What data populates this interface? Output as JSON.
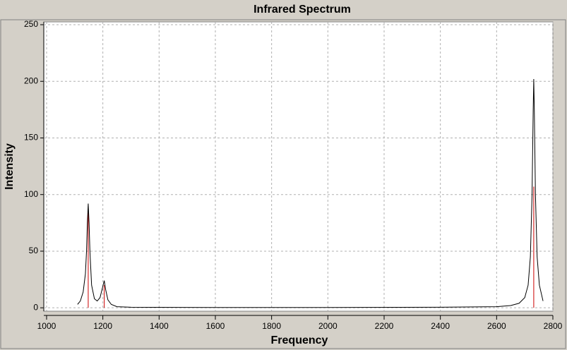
{
  "chart_data": {
    "type": "line",
    "title": "Infrared Spectrum",
    "xlabel": "Frequency",
    "ylabel": "Intensity",
    "x": [
      1110,
      1120,
      1130,
      1138,
      1142,
      1145,
      1148,
      1151,
      1154,
      1160,
      1170,
      1180,
      1190,
      1198,
      1205,
      1210,
      1218,
      1230,
      1250,
      1300,
      1600,
      2000,
      2400,
      2600,
      2650,
      2680,
      2700,
      2712,
      2720,
      2726,
      2730,
      2732,
      2734,
      2738,
      2744,
      2752,
      2765
    ],
    "series": [
      {
        "color": "#000000",
        "values": [
          3,
          6,
          14,
          30,
          50,
          75,
          92,
          75,
          50,
          20,
          8,
          6,
          9,
          17,
          24,
          16,
          7,
          3,
          1,
          0.5,
          0.3,
          0.3,
          0.5,
          1,
          2,
          4,
          9,
          20,
          45,
          100,
          175,
          202,
          175,
          100,
          45,
          20,
          6
        ]
      }
    ],
    "sticks": {
      "color": "#cc0000",
      "x": [
        1148,
        1205,
        2732
      ],
      "values": [
        84,
        20,
        107
      ]
    },
    "xlim": [
      990,
      2800
    ],
    "ylim": [
      -3,
      252.5
    ],
    "xticks": [
      1000,
      1200,
      1400,
      1600,
      1800,
      2000,
      2200,
      2400,
      2600,
      2800
    ],
    "yticks": [
      0,
      50,
      100,
      150,
      200,
      250
    ],
    "grid": true
  }
}
